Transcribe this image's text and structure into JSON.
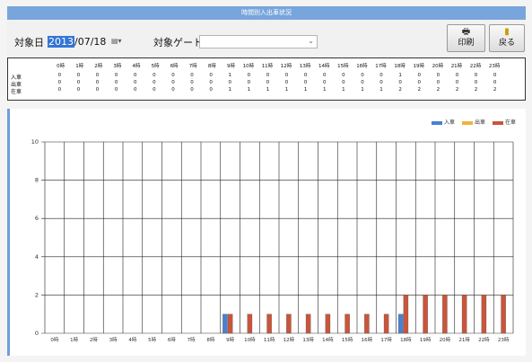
{
  "window": {
    "title": "時間別入出車状況"
  },
  "toolbar": {
    "date_label": "対象日",
    "date_year": "2013",
    "date_rest": "/07/18",
    "date_icon": "calendar-icon",
    "gate_label": "対象ゲート",
    "gate_value": "",
    "print_label": "印刷",
    "print_icon": "printer-icon",
    "back_label": "戻る",
    "back_icon": "door-exit-icon"
  },
  "grid": {
    "hours": [
      "0時",
      "1時",
      "2時",
      "3時",
      "4時",
      "5時",
      "6時",
      "7時",
      "8時",
      "9時",
      "10時",
      "11時",
      "12時",
      "13時",
      "14時",
      "15時",
      "16時",
      "17時",
      "18時",
      "19時",
      "20時",
      "21時",
      "22時",
      "23時"
    ],
    "rows": [
      {
        "label": "入車",
        "values": [
          0,
          0,
          0,
          0,
          0,
          0,
          0,
          0,
          0,
          1,
          0,
          0,
          0,
          0,
          0,
          0,
          0,
          0,
          1,
          0,
          0,
          0,
          0,
          0
        ]
      },
      {
        "label": "出車",
        "values": [
          0,
          0,
          0,
          0,
          0,
          0,
          0,
          0,
          0,
          0,
          0,
          0,
          0,
          0,
          0,
          0,
          0,
          0,
          0,
          0,
          0,
          0,
          0,
          0
        ]
      },
      {
        "label": "在車",
        "values": [
          0,
          0,
          0,
          0,
          0,
          0,
          0,
          0,
          0,
          1,
          1,
          1,
          1,
          1,
          1,
          1,
          1,
          1,
          2,
          2,
          2,
          2,
          2,
          2
        ]
      }
    ]
  },
  "chart_data": {
    "type": "bar",
    "categories": [
      "0時",
      "1時",
      "2時",
      "3時",
      "4時",
      "5時",
      "6時",
      "7時",
      "8時",
      "9時",
      "10時",
      "11時",
      "12時",
      "13時",
      "14時",
      "15時",
      "16時",
      "17時",
      "18時",
      "19時",
      "20時",
      "21時",
      "22時",
      "23時"
    ],
    "series": [
      {
        "name": "入車",
        "color": "#4a7fd2",
        "values": [
          0,
          0,
          0,
          0,
          0,
          0,
          0,
          0,
          0,
          1,
          0,
          0,
          0,
          0,
          0,
          0,
          0,
          0,
          1,
          0,
          0,
          0,
          0,
          0
        ]
      },
      {
        "name": "出車",
        "color": "#f0b33c",
        "values": [
          0,
          0,
          0,
          0,
          0,
          0,
          0,
          0,
          0,
          0,
          0,
          0,
          0,
          0,
          0,
          0,
          0,
          0,
          0,
          0,
          0,
          0,
          0,
          0
        ]
      },
      {
        "name": "在車",
        "color": "#c9553a",
        "values": [
          0,
          0,
          0,
          0,
          0,
          0,
          0,
          0,
          0,
          1,
          1,
          1,
          1,
          1,
          1,
          1,
          1,
          1,
          2,
          2,
          2,
          2,
          2,
          2
        ]
      }
    ],
    "ylim": [
      0,
      10
    ],
    "yticks": [
      0,
      2,
      4,
      6,
      8,
      10
    ],
    "grid": true,
    "legend": "top-right",
    "title": "",
    "xlabel": "",
    "ylabel": ""
  }
}
